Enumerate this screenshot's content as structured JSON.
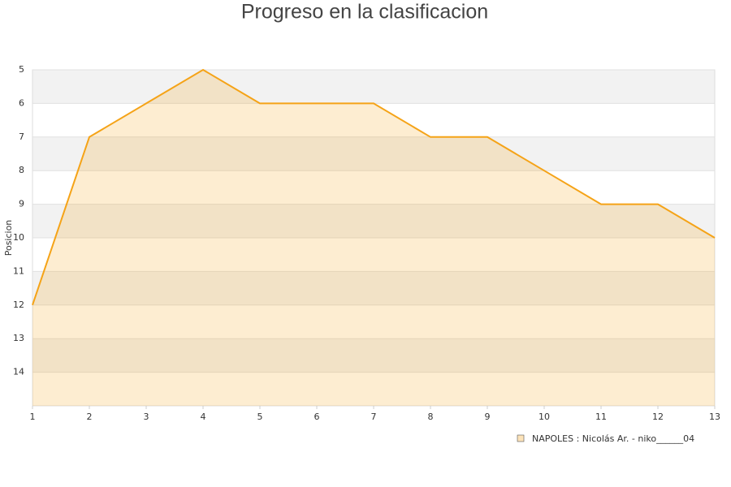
{
  "chart_data": {
    "type": "area",
    "title": "Progreso en la clasificacion",
    "y_label": "Posicion",
    "x": [
      1,
      2,
      3,
      4,
      5,
      6,
      7,
      8,
      9,
      10,
      11,
      12,
      13
    ],
    "series": [
      {
        "name": "NAPOLES : Nicolás Ar. - niko______04",
        "color": "#f5a317",
        "values": [
          12,
          7,
          6,
          5,
          6,
          6,
          6,
          7,
          7,
          8,
          9,
          9,
          10
        ]
      }
    ],
    "xlim": [
      1,
      13
    ],
    "xticks": [
      1,
      2,
      3,
      4,
      5,
      6,
      7,
      8,
      9,
      10,
      11,
      12,
      13
    ],
    "ylim": [
      15,
      5
    ],
    "yticks": [
      5,
      6,
      7,
      8,
      9,
      10,
      11,
      12,
      13,
      14
    ],
    "grid": true
  }
}
